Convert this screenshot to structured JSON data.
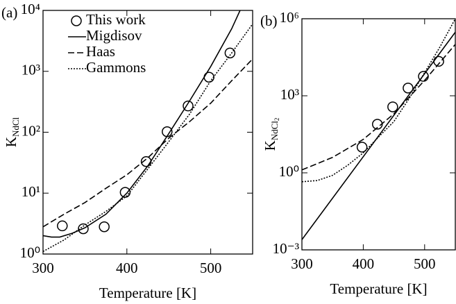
{
  "chart_data": [
    {
      "type": "line",
      "panel_label": "(a)",
      "xlabel": "Temperature [K]",
      "ylabel": {
        "main": "K",
        "sub": "NdCl"
      },
      "xlim": [
        300,
        550
      ],
      "xticks": [
        300,
        400,
        500
      ],
      "ylim": [
        1,
        10000
      ],
      "log_y": true,
      "yticks": [
        {
          "value": 1,
          "label": "10⁰"
        },
        {
          "value": 10,
          "label": "10¹"
        },
        {
          "value": 100,
          "label": "10²"
        },
        {
          "value": 1000,
          "label": "10³"
        },
        {
          "value": 10000,
          "label": "10⁴"
        }
      ],
      "legend": "upper left",
      "series": [
        {
          "name": "This work",
          "marker": "circle",
          "dash": "none",
          "color": "#000000",
          "x": [
            323,
            348,
            373,
            398,
            423,
            448,
            473,
            498,
            523
          ],
          "values": [
            2.9,
            2.6,
            2.8,
            10.3,
            33,
            102,
            270,
            800,
            2000
          ]
        },
        {
          "name": "Migdisov",
          "marker": "none",
          "dash": "",
          "color": "#000000",
          "x": [
            300,
            310,
            320,
            335,
            350,
            375,
            400,
            425,
            450,
            475,
            500,
            525,
            535
          ],
          "values": [
            2.0,
            1.9,
            1.9,
            2.2,
            2.7,
            4.5,
            10,
            28,
            95,
            330,
            1200,
            5000,
            10000
          ]
        },
        {
          "name": "Haas",
          "marker": "none",
          "dash": "9,4",
          "color": "#000000",
          "x": [
            300,
            325,
            350,
            375,
            400,
            425,
            450,
            475,
            500,
            525,
            550
          ],
          "values": [
            2.8,
            4.5,
            7,
            12,
            20,
            38,
            80,
            150,
            300,
            700,
            1600
          ]
        },
        {
          "name": "Gammons",
          "marker": "none",
          "dash": "2,2",
          "color": "#000000",
          "x": [
            300,
            325,
            350,
            375,
            400,
            425,
            450,
            475,
            500,
            525,
            550
          ],
          "values": [
            1.1,
            1.7,
            3,
            5,
            9,
            25,
            70,
            200,
            700,
            2000,
            6000
          ]
        }
      ]
    },
    {
      "type": "line",
      "panel_label": "(b)",
      "xlabel": "Temperature [K]",
      "ylabel": {
        "main": "K",
        "sub": "NdCl",
        "subsub": "2"
      },
      "xlim": [
        300,
        550
      ],
      "xticks": [
        300,
        400,
        500
      ],
      "ylim": [
        0.001,
        1000000
      ],
      "log_y": true,
      "yticks": [
        {
          "value": 0.001,
          "label": "10⁻³"
        },
        {
          "value": 1,
          "label": "10⁰"
        },
        {
          "value": 1000,
          "label": "10³"
        },
        {
          "value": 1000000,
          "label": "10⁶"
        }
      ],
      "legend": "none",
      "series": [
        {
          "marker": "circle",
          "dash": "none",
          "color": "#000000",
          "x": [
            398,
            423,
            448,
            473,
            498,
            523
          ],
          "values": [
            10,
            78,
            370,
            2000,
            5700,
            22000
          ]
        },
        {
          "marker": "none",
          "dash": "",
          "color": "#000000",
          "x": [
            300,
            550
          ],
          "values": [
            0.0025,
            300000
          ]
        },
        {
          "marker": "none",
          "dash": "9,4",
          "color": "#000000",
          "x": [
            300,
            350,
            400,
            450,
            500,
            550
          ],
          "values": [
            1.3,
            4,
            20,
            200,
            4000,
            100000
          ]
        },
        {
          "marker": "none",
          "dash": "2,2",
          "color": "#000000",
          "x": [
            300,
            325,
            350,
            375,
            400,
            425,
            450,
            475,
            500,
            525,
            550
          ],
          "values": [
            0.45,
            0.5,
            0.8,
            2,
            6,
            25,
            100,
            800,
            8000,
            80000,
            1000000
          ]
        }
      ]
    }
  ]
}
